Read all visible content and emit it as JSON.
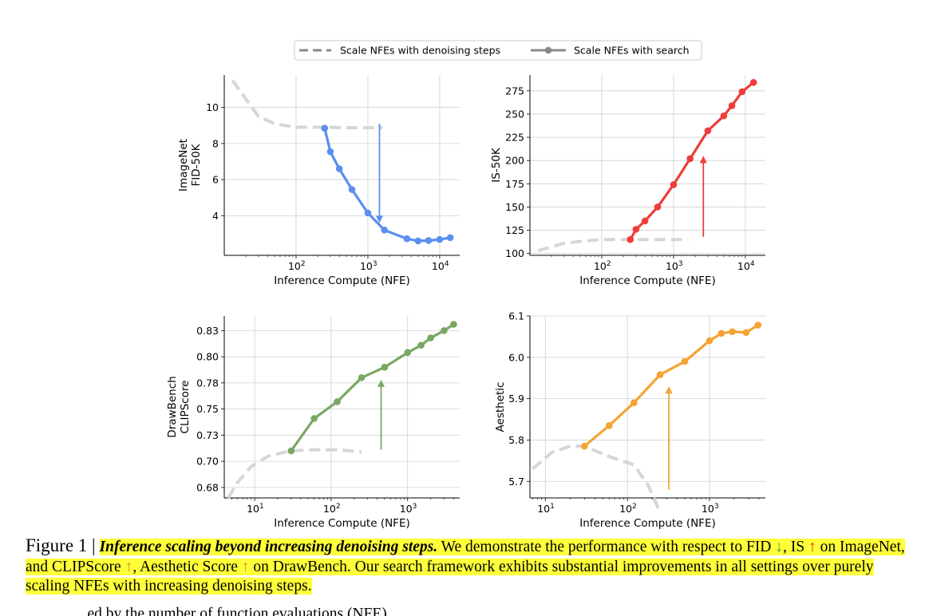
{
  "legend": {
    "dashed_label": "Scale NFEs with denoising steps",
    "search_label": "Scale NFEs with search"
  },
  "caption": {
    "figure_label": "Figure 1 |",
    "title": "Inference scaling beyond increasing denoising steps.",
    "text_1": " We demonstrate the performance with respect to FID ",
    "arrow_down": "↓",
    "sep_1": ", IS ",
    "arrow_up_1": "↑",
    "text_2": " on ImageNet, and CLIPScore ",
    "arrow_up_2": "↑",
    "sep_2": ", Aesthetic Score ",
    "arrow_up_3": "↑",
    "text_3": " on DrawBench. Our search framework exhibits substantial improvements in all settings over purely scaling NFEs with increasing denoising steps.",
    "trailing_text": "…ed by the number of function evaluations (NFE)"
  },
  "colors": {
    "blue": "#5b8ff0",
    "red": "#ee3d3a",
    "green": "#7aa863",
    "orange": "#f5a332",
    "baseline": "#d6d6d6",
    "highlight": "#ffff3a"
  },
  "chart_data": [
    {
      "id": "fid",
      "type": "line",
      "ylabel": [
        "ImageNet",
        "FID-50K"
      ],
      "xlabel": "Inference Compute (NFE)",
      "xscale": "log",
      "xlim": [
        10,
        19000
      ],
      "ylim": [
        1.8,
        11.8
      ],
      "x_ticks": [
        100,
        1000,
        10000
      ],
      "x_tick_labels": [
        "10^2",
        "10^3",
        "10^4"
      ],
      "y_ticks": [
        4,
        6,
        8,
        10
      ],
      "y_tick_labels": [
        "4",
        "6",
        "8",
        "10"
      ],
      "baseline": {
        "name": "Scale NFEs with denoising steps",
        "x": [
          13,
          30,
          50,
          100,
          250,
          500,
          1000,
          1600
        ],
        "y": [
          11.5,
          9.5,
          9.1,
          8.9,
          8.9,
          8.88,
          8.88,
          8.88
        ]
      },
      "series": {
        "name": "Scale NFEs with search",
        "color": "#5b8ff0",
        "x": [
          250,
          300,
          400,
          600,
          1000,
          1700,
          3500,
          5000,
          7000,
          10000,
          14000
        ],
        "y": [
          8.85,
          7.55,
          6.6,
          5.45,
          4.15,
          3.2,
          2.72,
          2.6,
          2.62,
          2.68,
          2.78
        ]
      },
      "arrow": {
        "x": 1450,
        "from": 9.1,
        "to": 3.6,
        "direction": "down"
      }
    },
    {
      "id": "is",
      "type": "line",
      "ylabel": [
        "IS-50K"
      ],
      "xlabel": "Inference Compute (NFE)",
      "xscale": "log",
      "xlim": [
        10,
        19000
      ],
      "ylim": [
        98,
        292
      ],
      "x_ticks": [
        100,
        1000,
        10000
      ],
      "x_tick_labels": [
        "10^2",
        "10^3",
        "10^4"
      ],
      "y_ticks": [
        100,
        125,
        150,
        175,
        200,
        225,
        250,
        275
      ],
      "y_tick_labels": [
        "100",
        "125",
        "150",
        "175",
        "200",
        "225",
        "250",
        "275"
      ],
      "baseline": {
        "name": "Scale NFEs with denoising steps",
        "x": [
          13,
          30,
          50,
          100,
          250,
          500,
          1000,
          1600
        ],
        "y": [
          103,
          111,
          113,
          115,
          115,
          115,
          115,
          115
        ]
      },
      "series": {
        "name": "Scale NFEs with search",
        "color": "#ee3d3a",
        "x": [
          250,
          300,
          400,
          600,
          1000,
          1700,
          3000,
          5000,
          6500,
          9000,
          13000
        ],
        "y": [
          115,
          126,
          135,
          150,
          174,
          202,
          232,
          248,
          259,
          274,
          284
        ]
      },
      "arrow": {
        "x": 2600,
        "from": 118,
        "to": 205,
        "direction": "up"
      }
    },
    {
      "id": "clip",
      "type": "line",
      "ylabel": [
        "DrawBench",
        "CLIPScore"
      ],
      "xlabel": "Inference Compute (NFE)",
      "xscale": "log",
      "xlim": [
        4,
        4800
      ],
      "ylim": [
        0.665,
        0.839
      ],
      "x_ticks": [
        10,
        100,
        1000
      ],
      "x_tick_labels": [
        "10^1",
        "10^2",
        "10^3"
      ],
      "y_ticks": [
        0.675,
        0.7,
        0.725,
        0.75,
        0.775,
        0.8,
        0.825
      ],
      "y_tick_labels": [
        "0.68",
        "0.70",
        "0.73",
        "0.75",
        "0.78",
        "0.80",
        "0.83"
      ],
      "baseline": {
        "name": "Scale NFEs with denoising steps",
        "x": [
          4.5,
          6,
          9,
          15,
          30,
          60,
          120,
          250
        ],
        "y": [
          0.665,
          0.68,
          0.695,
          0.705,
          0.71,
          0.711,
          0.711,
          0.709
        ]
      },
      "series": {
        "name": "Scale NFEs with search",
        "color": "#7aa863",
        "x": [
          30,
          60,
          120,
          250,
          500,
          1000,
          1500,
          2000,
          3000,
          4000
        ],
        "y": [
          0.71,
          0.741,
          0.757,
          0.78,
          0.79,
          0.804,
          0.811,
          0.818,
          0.825,
          0.831
        ]
      },
      "arrow": {
        "x": 450,
        "from": 0.711,
        "to": 0.778,
        "direction": "up"
      }
    },
    {
      "id": "aesthetic",
      "type": "line",
      "ylabel": [
        "Aesthetic"
      ],
      "xlabel": "Inference Compute (NFE)",
      "xscale": "log",
      "xlim": [
        6.5,
        4800
      ],
      "ylim": [
        5.66,
        6.1
      ],
      "x_ticks": [
        10,
        100,
        1000
      ],
      "x_tick_labels": [
        "10^1",
        "10^2",
        "10^3"
      ],
      "y_ticks": [
        5.7,
        5.8,
        5.9,
        6.0,
        6.1
      ],
      "y_tick_labels": [
        "5.7",
        "5.8",
        "5.9",
        "6.0",
        "6.1"
      ],
      "baseline": {
        "name": "Scale NFEs with denoising steps",
        "x": [
          7,
          12,
          20,
          30,
          60,
          120,
          180,
          250
        ],
        "y": [
          5.73,
          5.77,
          5.785,
          5.785,
          5.76,
          5.74,
          5.69,
          5.625
        ]
      },
      "series": {
        "name": "Scale NFEs with search",
        "color": "#f5a332",
        "x": [
          30,
          60,
          120,
          250,
          500,
          1000,
          1400,
          1900,
          2800,
          3900
        ],
        "y": [
          5.785,
          5.835,
          5.89,
          5.958,
          5.99,
          6.04,
          6.058,
          6.062,
          6.06,
          6.078
        ]
      },
      "arrow": {
        "x": 320,
        "from": 5.68,
        "to": 5.93,
        "direction": "up"
      }
    }
  ]
}
